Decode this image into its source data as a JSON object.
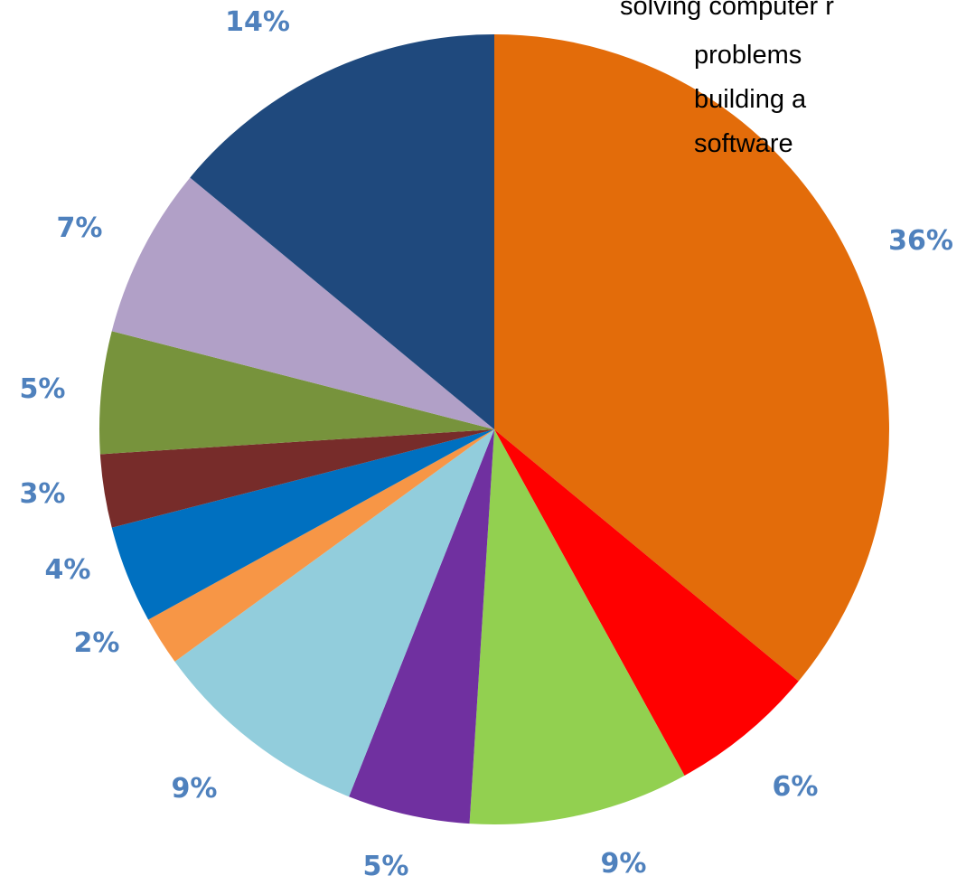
{
  "chart_data": {
    "type": "pie",
    "slices": [
      {
        "label": "36%",
        "value": 36,
        "color": "#e36c0a"
      },
      {
        "label": "6%",
        "value": 6,
        "color": "#ff0000"
      },
      {
        "label": "9%",
        "value": 9,
        "color": "#92d050"
      },
      {
        "label": "5%",
        "value": 5,
        "color": "#7030a0"
      },
      {
        "label": "9%",
        "value": 9,
        "color": "#92cddc"
      },
      {
        "label": "2%",
        "value": 2,
        "color": "#f79646"
      },
      {
        "label": "4%",
        "value": 4,
        "color": "#0070c0"
      },
      {
        "label": "3%",
        "value": 3,
        "color": "#772c2a"
      },
      {
        "label": "5%",
        "value": 5,
        "color": "#77933c"
      },
      {
        "label": "7%",
        "value": 7,
        "color": "#b1a0c7"
      },
      {
        "label": "14%",
        "value": 14,
        "color": "#1f497d"
      }
    ],
    "legend_lines": [
      "solving computer r",
      "problems",
      "building a",
      "software"
    ],
    "label_color": "#4f81bd"
  }
}
